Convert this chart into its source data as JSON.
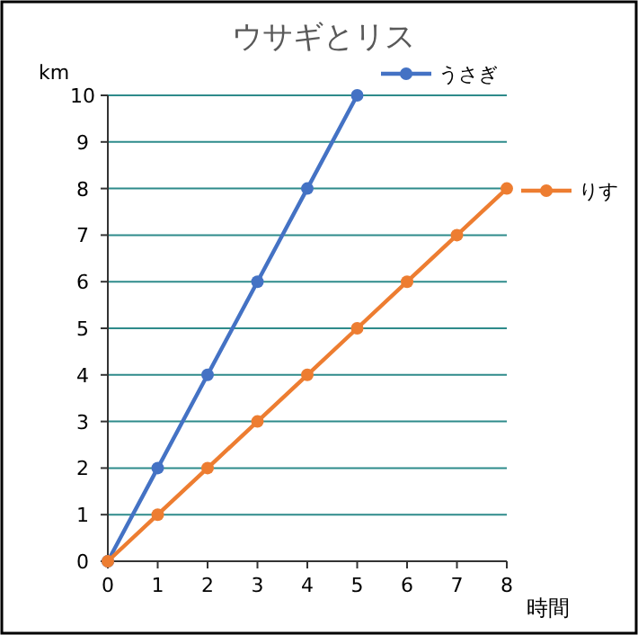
{
  "chart_data": {
    "type": "line",
    "title": "ウサギとリス",
    "xlabel": "時間",
    "ylabel": "km",
    "x": [
      0,
      1,
      2,
      3,
      4,
      5,
      6,
      7,
      8
    ],
    "series": [
      {
        "name": "うさぎ",
        "color": "#4472c4",
        "values": [
          0,
          2,
          4,
          6,
          8,
          10,
          null,
          null,
          null
        ]
      },
      {
        "name": "りす",
        "color": "#ed7d31",
        "values": [
          0,
          1,
          2,
          3,
          4,
          5,
          6,
          7,
          8
        ]
      }
    ],
    "xlim": [
      0,
      8
    ],
    "xticks": [
      0,
      1,
      2,
      3,
      4,
      5,
      6,
      7,
      8
    ],
    "ylim": [
      0,
      10
    ],
    "yticks": [
      0,
      1,
      2,
      3,
      4,
      5,
      6,
      7,
      8,
      9,
      10
    ],
    "grid": "y",
    "legend": "right",
    "marker": "circle",
    "line_style": "solid"
  }
}
